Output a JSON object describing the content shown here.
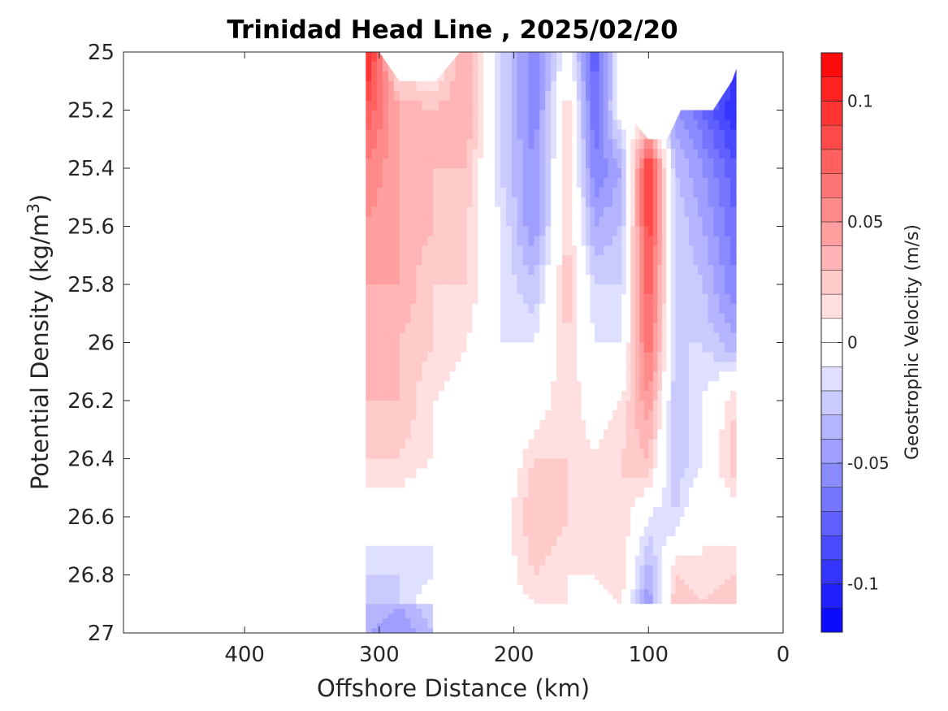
{
  "chart_data": {
    "type": "heatmap",
    "subtype": "filled-contour",
    "title": "Trinidad Head Line , 2025/02/20",
    "xlabel": "Offshore Distance (km)",
    "ylabel_main": "Potential Density (kg/m",
    "ylabel_sup": "3",
    "ylabel_close": ")",
    "x_reversed": true,
    "xlim": [
      0,
      490
    ],
    "ylim": [
      25,
      27
    ],
    "y_reversed": true,
    "xticks": [
      400,
      300,
      200,
      100,
      0
    ],
    "yticks": [
      25,
      25.2,
      25.4,
      25.6,
      25.8,
      26,
      26.2,
      26.4,
      26.6,
      26.8,
      27
    ],
    "colorbar": {
      "label": "Geostrophic Velocity (m/s)",
      "limits": [
        -0.12,
        0.12
      ],
      "step": 0.01,
      "ticks": [
        0.1,
        0.05,
        0,
        -0.05,
        -0.1
      ],
      "tick_labels": [
        "0.1",
        "0.05",
        "0",
        "-0.05",
        "-0.1"
      ],
      "colormap": "blue-white-red diverging",
      "color_max": "#ff0000",
      "color_min": "#0000ff",
      "color_zero": "#ffffff"
    },
    "stations_km": [
      310,
      285,
      260,
      235,
      210,
      185,
      160,
      140,
      120,
      100,
      80,
      60,
      35
    ],
    "density_levels": [
      25.0,
      25.2,
      25.4,
      25.6,
      25.8,
      26.0,
      26.2,
      26.4,
      26.6,
      26.8,
      26.9
    ],
    "velocity_grid": [
      [
        0.11,
        0.0,
        0.0,
        0.04,
        -0.02,
        -0.06,
        0.0,
        -0.08,
        0.0,
        0.0,
        0.0,
        0.0,
        -0.11
      ],
      [
        0.08,
        0.04,
        0.03,
        0.04,
        -0.02,
        -0.06,
        0.02,
        -0.07,
        0.0,
        0.0,
        -0.05,
        -0.07,
        -0.1
      ],
      [
        0.06,
        0.04,
        0.03,
        0.03,
        -0.02,
        -0.05,
        0.02,
        -0.06,
        -0.04,
        0.1,
        -0.03,
        -0.05,
        -0.08
      ],
      [
        0.05,
        0.04,
        0.03,
        0.02,
        -0.01,
        -0.05,
        0.02,
        -0.04,
        -0.03,
        0.09,
        -0.02,
        -0.04,
        -0.07
      ],
      [
        0.04,
        0.04,
        0.02,
        0.02,
        -0.01,
        -0.03,
        0.03,
        -0.02,
        -0.02,
        0.08,
        -0.02,
        -0.03,
        -0.06
      ],
      [
        0.04,
        0.03,
        0.02,
        0.01,
        -0.01,
        -0.01,
        0.02,
        -0.01,
        -0.01,
        0.07,
        -0.02,
        -0.02,
        -0.04
      ],
      [
        0.03,
        0.03,
        0.01,
        0.0,
        -0.01,
        0.0,
        0.02,
        0.0,
        0.01,
        0.05,
        -0.03,
        -0.01,
        0.02
      ],
      [
        0.02,
        0.02,
        0.01,
        0.0,
        -0.01,
        0.02,
        0.02,
        0.01,
        0.02,
        0.03,
        -0.03,
        -0.01,
        0.03
      ],
      [
        0.0,
        0.0,
        -0.01,
        -0.01,
        0.0,
        0.03,
        0.02,
        0.01,
        0.02,
        -0.01,
        -0.02,
        0.01,
        0.0
      ],
      [
        -0.02,
        -0.02,
        -0.01,
        -0.01,
        0.0,
        0.02,
        0.01,
        0.01,
        0.02,
        -0.04,
        0.02,
        0.01,
        0.02
      ],
      [
        -0.03,
        -0.02,
        0.0,
        0.0,
        0.0,
        0.01,
        0.01,
        0.0,
        0.01,
        -0.05,
        0.03,
        0.02,
        0.03
      ]
    ],
    "deep_extension": {
      "stations_km": [
        310,
        285,
        260
      ],
      "density_levels": [
        26.9,
        27.0
      ],
      "values": [
        [
          -0.03,
          -0.04,
          -0.02
        ],
        [
          -0.04,
          -0.05,
          -0.03
        ]
      ]
    }
  }
}
